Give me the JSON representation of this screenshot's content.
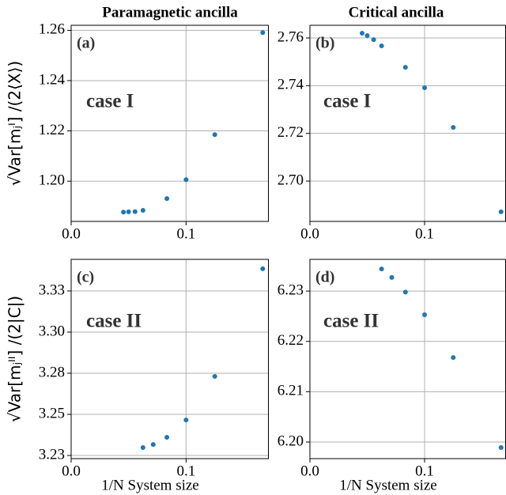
{
  "chart_data": [
    {
      "type": "scatter",
      "title": "Paramagnetic ancilla",
      "panel_label": "(a)",
      "annotation": "case I",
      "ylabel": "√Var[mⱼᴵ] /(2⟨X⟩)",
      "color": "#1f77b4",
      "grid": true,
      "x": [
        0.0455,
        0.05,
        0.0556,
        0.0625,
        0.0833,
        0.1,
        0.125,
        0.1667
      ],
      "values": [
        1.1877,
        1.1878,
        1.1879,
        1.1884,
        1.1931,
        1.2006,
        1.2185,
        1.2591
      ],
      "xlim": [
        0,
        0.172
      ],
      "xticks": [
        {
          "value": 0,
          "label": "0.0"
        },
        0.1
      ],
      "ylim": [
        1.184,
        1.262
      ],
      "yticks": [
        {
          "value": 1.2,
          "label": "1.20"
        },
        1.22,
        1.24,
        1.26
      ]
    },
    {
      "type": "scatter",
      "title": "Critical ancilla",
      "panel_label": "(b)",
      "annotation": "case I",
      "color": "#1f77b4",
      "grid": true,
      "x": [
        0.0455,
        0.05,
        0.0556,
        0.0625,
        0.0833,
        0.1,
        0.125,
        0.1667
      ],
      "values": [
        2.762,
        2.761,
        2.7593,
        2.7567,
        2.7477,
        2.7391,
        2.7225,
        2.6871
      ],
      "xlim": [
        0,
        0.171
      ],
      "xticks": [
        {
          "value": 0,
          "label": "0.0"
        },
        0.1
      ],
      "ylim": [
        2.6831,
        2.7653
      ],
      "yticks": [
        {
          "value": 2.7,
          "label": "2.70"
        },
        2.72,
        2.74,
        2.76
      ]
    },
    {
      "type": "scatter",
      "panel_label": "(c)",
      "annotation": "case II",
      "ylabel": "√Var[mⱼᴵᴵ] /(2|C|)",
      "xlabel": "1/N System size",
      "color": "#1f77b4",
      "grid": true,
      "x": [
        0.0625,
        0.0714,
        0.0833,
        0.1,
        0.125,
        0.1667
      ],
      "values": [
        3.2298,
        3.2317,
        3.2361,
        3.2466,
        3.2731,
        3.3385
      ],
      "xlim": [
        0,
        0.172
      ],
      "xticks": [
        {
          "value": 0,
          "label": "0.0"
        },
        0.1
      ],
      "ylim": [
        3.2231,
        3.3442
      ],
      "yticks": [
        {
          "value": 3.225,
          "label": "3.23"
        },
        3.25,
        {
          "value": 3.275,
          "label": "3.28"
        },
        {
          "value": 3.3,
          "label": "3.30"
        },
        {
          "value": 3.325,
          "label": "3.33"
        }
      ]
    },
    {
      "type": "scatter",
      "panel_label": "(d)",
      "annotation": "case II",
      "xlabel": "1/N System size",
      "color": "#1f77b4",
      "grid": true,
      "x": [
        0.0625,
        0.0714,
        0.0833,
        0.1,
        0.125,
        0.1667
      ],
      "values": [
        6.2344,
        6.2327,
        6.2298,
        6.2253,
        6.2168,
        6.1989
      ],
      "xlim": [
        0,
        0.171
      ],
      "xticks": [
        {
          "value": 0,
          "label": "0.0"
        },
        0.1
      ],
      "ylim": [
        6.1967,
        6.2363
      ],
      "yticks": [
        {
          "value": 6.2,
          "label": "6.20"
        },
        6.21,
        6.22,
        6.23
      ]
    }
  ]
}
